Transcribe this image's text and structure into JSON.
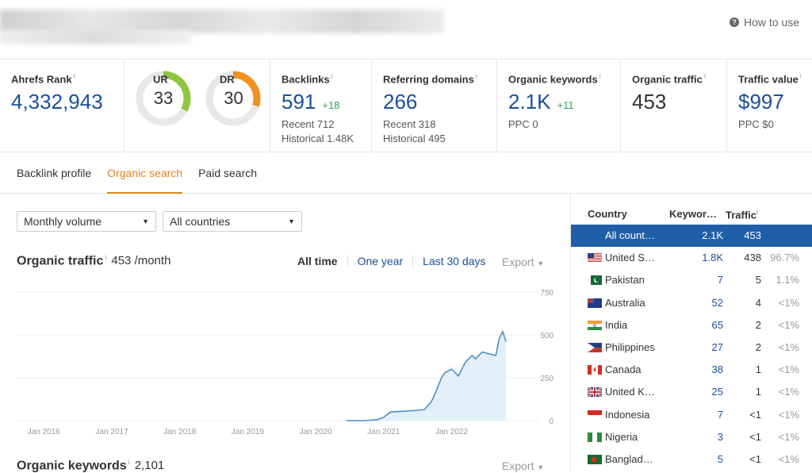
{
  "header": {
    "how_to_use": "How to use"
  },
  "metrics": {
    "ahrefs_rank": {
      "label": "Ahrefs Rank",
      "info": "i",
      "value": "4,332,943"
    },
    "ur": {
      "label": "UR",
      "info": "i",
      "value": "33",
      "fraction": 0.33,
      "color": "#8dc63f"
    },
    "dr": {
      "label": "DR",
      "info": "i",
      "value": "30",
      "fraction": 0.3,
      "color": "#f0901e"
    },
    "backlinks": {
      "label": "Backlinks",
      "info": "i",
      "value": "591",
      "delta": "+18",
      "recent": "Recent 712",
      "historical": "Historical 1.48K"
    },
    "referring_domains": {
      "label": "Referring domains",
      "info": "i",
      "value": "266",
      "recent": "Recent 318",
      "historical": "Historical 495"
    },
    "organic_keywords": {
      "label": "Organic keywords",
      "info": "i",
      "value": "2.1K",
      "delta": "+11",
      "ppc": "PPC 0"
    },
    "organic_traffic": {
      "label": "Organic traffic",
      "info": "i",
      "value": "453"
    },
    "traffic_value": {
      "label": "Traffic value",
      "info": "i",
      "value": "$997",
      "ppc": "PPC $0"
    }
  },
  "tabs": [
    {
      "label": "Backlink profile"
    },
    {
      "label": "Organic search"
    },
    {
      "label": "Paid search"
    }
  ],
  "filters": {
    "volume": "Monthly volume",
    "countries": "All countries"
  },
  "traffic_section": {
    "title": "Organic traffic",
    "info": "i",
    "value": "453 /month",
    "ranges": [
      "All time",
      "One year",
      "Last 30 days"
    ],
    "export": "Export"
  },
  "keywords_section": {
    "title": "Organic keywords",
    "info": "i",
    "value": "2,101",
    "export": "Export"
  },
  "chart_data": {
    "type": "area",
    "x_tick_labels": [
      "Jan 2016",
      "Jan 2017",
      "Jan 2018",
      "Jan 2019",
      "Jan 2020",
      "Jan 2021",
      "Jan 2022"
    ],
    "y_tick_labels": [
      "750",
      "500",
      "250",
      "0"
    ],
    "ylim": [
      0,
      750
    ],
    "grid": true,
    "series": [
      {
        "x": [
          2020.45,
          2020.7,
          2020.9,
          2021.0,
          2021.1,
          2021.3,
          2021.5,
          2021.6,
          2021.7,
          2021.75,
          2021.8,
          2021.85,
          2021.9,
          2022.0,
          2022.1,
          2022.2,
          2022.3,
          2022.35,
          2022.45,
          2022.55,
          2022.65,
          2022.7,
          2022.75,
          2022.8
        ],
        "y": [
          0,
          0,
          5,
          20,
          50,
          55,
          60,
          65,
          110,
          150,
          200,
          250,
          280,
          300,
          260,
          340,
          380,
          360,
          400,
          390,
          380,
          480,
          520,
          460
        ]
      }
    ],
    "color": "#4a90c8"
  },
  "countries_table": {
    "headers": {
      "country": "Country",
      "keywords": "Keywor…",
      "traffic": "Traffic",
      "info": "i"
    },
    "rows": [
      {
        "flag": "none",
        "name": "All count…",
        "keywords": "2.1K",
        "traffic": "453",
        "pct": "",
        "selected": true
      },
      {
        "flag": "us",
        "name": "United S…",
        "keywords": "1.8K",
        "traffic": "438",
        "pct": "96.7%"
      },
      {
        "flag": "pk",
        "name": "Pakistan",
        "keywords": "7",
        "traffic": "5",
        "pct": "1.1%"
      },
      {
        "flag": "au",
        "name": "Australia",
        "keywords": "52",
        "traffic": "4",
        "pct": "<1%"
      },
      {
        "flag": "in",
        "name": "India",
        "keywords": "65",
        "traffic": "2",
        "pct": "<1%"
      },
      {
        "flag": "ph",
        "name": "Philippines",
        "keywords": "27",
        "traffic": "2",
        "pct": "<1%"
      },
      {
        "flag": "ca",
        "name": "Canada",
        "keywords": "38",
        "traffic": "1",
        "pct": "<1%"
      },
      {
        "flag": "gb",
        "name": "United K…",
        "keywords": "25",
        "traffic": "1",
        "pct": "<1%"
      },
      {
        "flag": "id",
        "name": "Indonesia",
        "keywords": "7",
        "traffic": "<1",
        "pct": "<1%"
      },
      {
        "flag": "ng",
        "name": "Nigeria",
        "keywords": "3",
        "traffic": "<1",
        "pct": "<1%"
      },
      {
        "flag": "bd",
        "name": "Banglad…",
        "keywords": "5",
        "traffic": "<1",
        "pct": "<1%"
      }
    ]
  }
}
